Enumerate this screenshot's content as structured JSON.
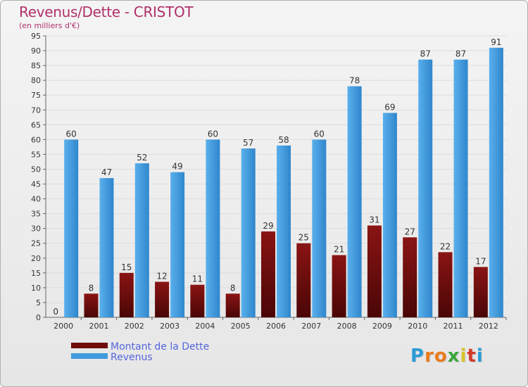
{
  "colors": {
    "title": "#b0306a",
    "dette": "#6e0c0c",
    "revenus": "#3f9ade",
    "axis_text": "#333333",
    "grid": "#dddddd",
    "legend_text": "#5566dd"
  },
  "chart_data": {
    "type": "bar",
    "title": "Revenus/Dette - CRISTOT",
    "subtitle": "(en milliers d'€)",
    "categories": [
      "2000",
      "2001",
      "2002",
      "2003",
      "2004",
      "2005",
      "2006",
      "2007",
      "2008",
      "2009",
      "2010",
      "2011",
      "2012"
    ],
    "series": [
      {
        "name": "Montant de la Dette",
        "values": [
          0,
          8,
          15,
          12,
          11,
          8,
          29,
          25,
          21,
          31,
          27,
          22,
          17
        ]
      },
      {
        "name": "Revenus",
        "values": [
          60,
          47,
          52,
          49,
          60,
          57,
          58,
          60,
          78,
          69,
          87,
          87,
          91
        ]
      }
    ],
    "ylim": [
      0,
      95
    ],
    "yticks": [
      0,
      5,
      10,
      15,
      20,
      25,
      30,
      35,
      40,
      45,
      50,
      55,
      60,
      65,
      70,
      75,
      80,
      85,
      90,
      95
    ],
    "grid": true,
    "legend_position": "bottom-left"
  },
  "logo": {
    "letters": [
      "P",
      "r",
      "o",
      "x",
      "i",
      "t",
      "i"
    ],
    "colors": [
      "#2a9bd6",
      "#e97b1c",
      "#e97b1c",
      "#3aa63a",
      "#d8c32a",
      "#d23a2a",
      "#2a9bd6"
    ]
  }
}
